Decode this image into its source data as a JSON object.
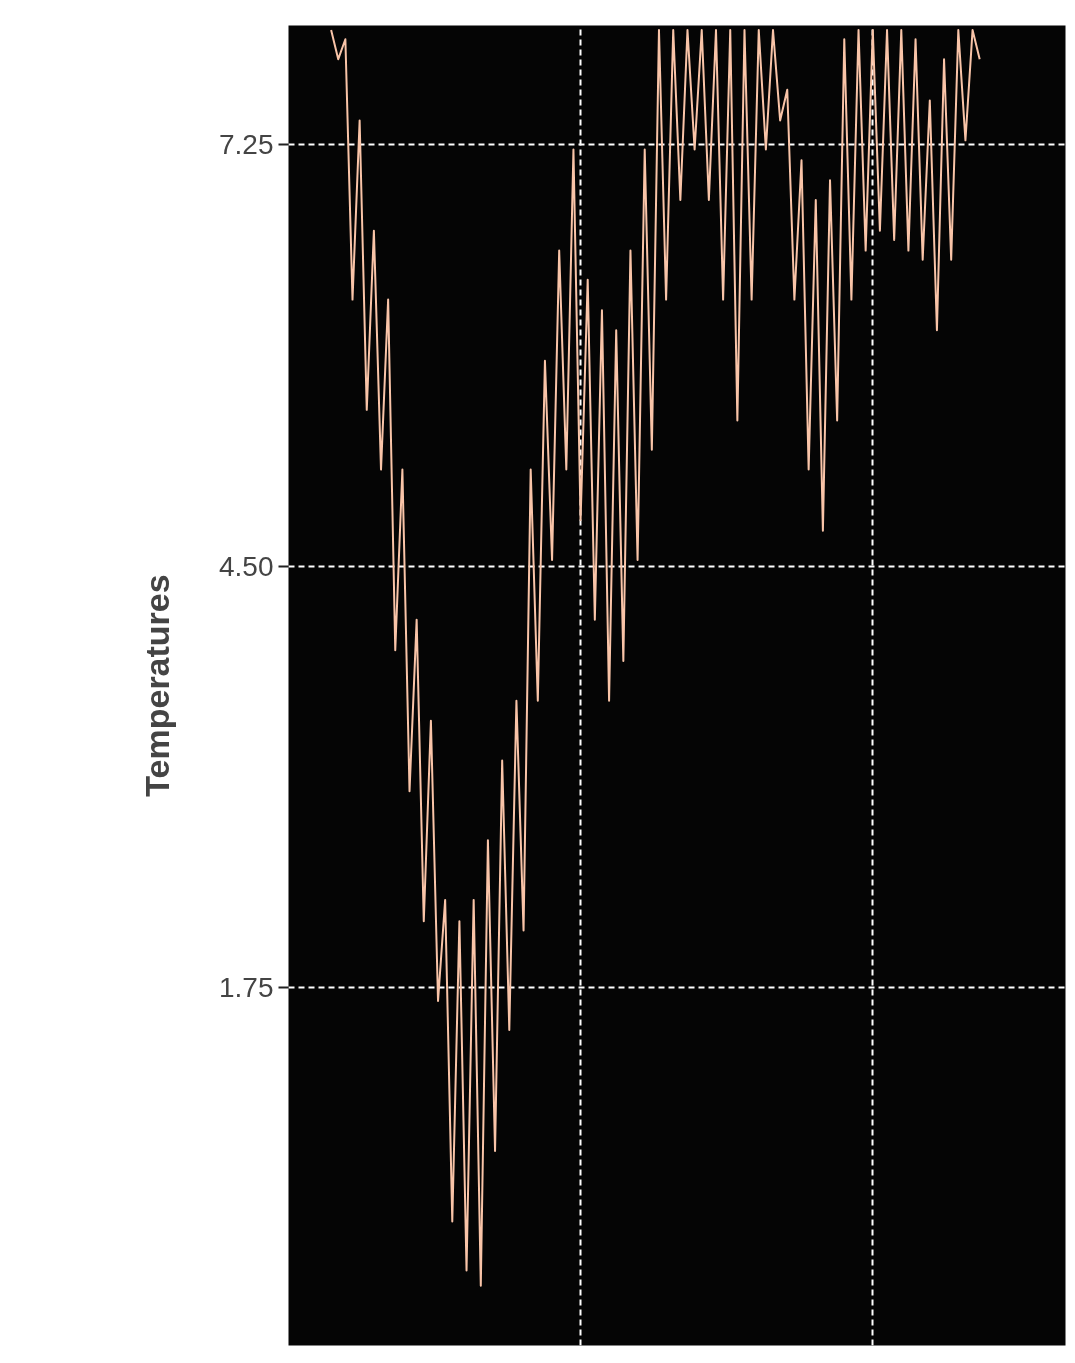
{
  "chart_data": {
    "type": "line",
    "ylabel": "Temperatures",
    "ylim": [
      -0.59,
      8.03
    ],
    "yticks": [
      {
        "value": 1.75,
        "label": "1.75"
      },
      {
        "value": 4.5,
        "label": "4.50"
      },
      {
        "value": 7.25,
        "label": "7.25"
      }
    ],
    "tick_labels": "y",
    "grid": true,
    "line_style": "solid",
    "categories": [
      null,
      null,
      null,
      null,
      null,
      null,
      null,
      null,
      null,
      null,
      null,
      null,
      null,
      null,
      null,
      null,
      null,
      null,
      null,
      null,
      null,
      null,
      null,
      null,
      null,
      null,
      null,
      null,
      null,
      null,
      null,
      null,
      null,
      null,
      null,
      null,
      null,
      null,
      null,
      null,
      null,
      null,
      null,
      null,
      null,
      null,
      null,
      null,
      null,
      null,
      null,
      null,
      null,
      null,
      null,
      null,
      null,
      null,
      null,
      null,
      null,
      null,
      null,
      null,
      null,
      null,
      null,
      null,
      null,
      null,
      null,
      null,
      null,
      null,
      null,
      null,
      null,
      null,
      null,
      null,
      null,
      null,
      null,
      null,
      null,
      null,
      null,
      null,
      null,
      null,
      null,
      null
    ],
    "series": [
      {
        "color": "#f9c4a8",
        "values": [
          8.0,
          7.81,
          7.94,
          6.24,
          7.41,
          5.52,
          6.69,
          5.13,
          6.24,
          3.95,
          5.13,
          3.03,
          4.15,
          2.18,
          3.49,
          1.66,
          2.32,
          0.22,
          2.18,
          -0.1,
          2.32,
          -0.2,
          2.71,
          0.68,
          3.23,
          1.47,
          3.62,
          2.12,
          5.13,
          3.62,
          5.84,
          4.54,
          6.56,
          5.13,
          7.22,
          4.8,
          6.37,
          4.15,
          6.17,
          3.62,
          6.04,
          3.88,
          6.56,
          4.54,
          7.22,
          5.26,
          8.0,
          6.24,
          8.0,
          6.89,
          8.0,
          7.22,
          8.0,
          6.89,
          8.0,
          6.24,
          8.0,
          5.45,
          8.0,
          6.24,
          8.0,
          7.22,
          8.0,
          7.41,
          7.61,
          6.24,
          7.15,
          5.13,
          6.89,
          4.73,
          7.02,
          5.45,
          7.94,
          6.24,
          8.0,
          6.56,
          8.0,
          6.69,
          8.0,
          6.63,
          8.0,
          6.56,
          7.94,
          6.5,
          7.54,
          6.04,
          7.81,
          6.5,
          8.0,
          7.28,
          8.0,
          7.81
        ]
      }
    ]
  }
}
